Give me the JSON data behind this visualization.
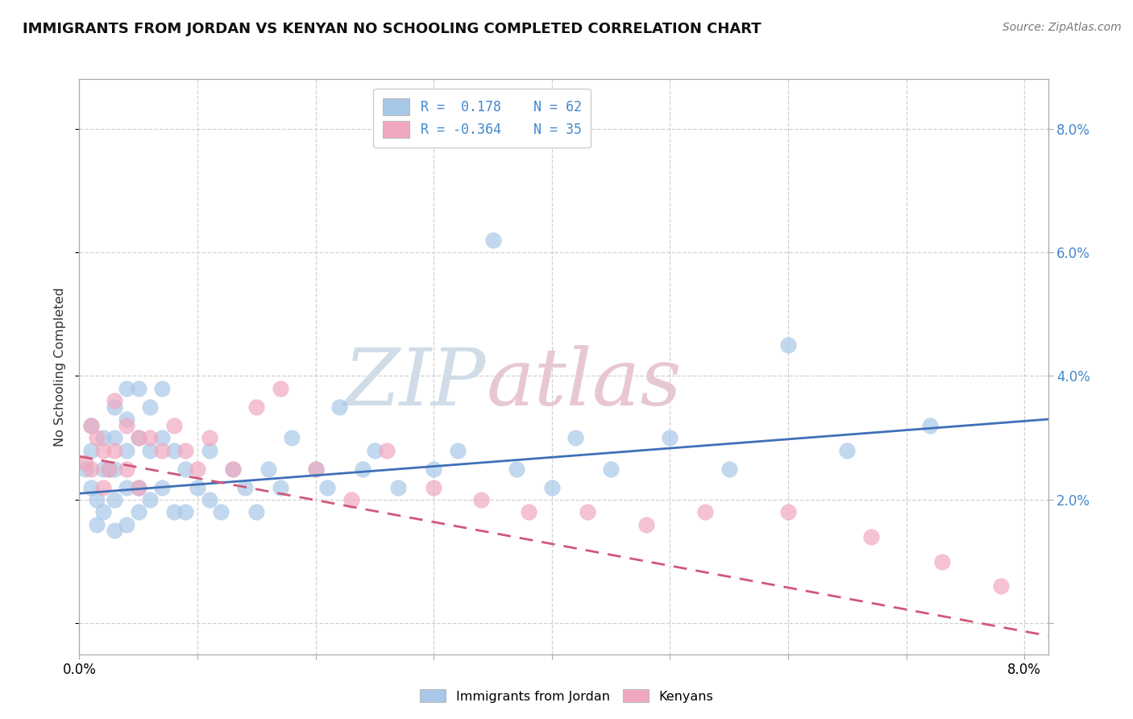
{
  "title": "IMMIGRANTS FROM JORDAN VS KENYAN NO SCHOOLING COMPLETED CORRELATION CHART",
  "source_text": "Source: ZipAtlas.com",
  "ylabel": "No Schooling Completed",
  "xlim": [
    0.0,
    0.082
  ],
  "ylim": [
    -0.005,
    0.088
  ],
  "xticks": [
    0.0,
    0.01,
    0.02,
    0.03,
    0.04,
    0.05,
    0.06,
    0.07,
    0.08
  ],
  "yticks": [
    0.0,
    0.02,
    0.04,
    0.06,
    0.08
  ],
  "legend1_r": " 0.178",
  "legend1_n": "62",
  "legend2_r": "-0.364",
  "legend2_n": "35",
  "blue_color": "#a8c8e8",
  "pink_color": "#f0a8c0",
  "blue_line_color": "#4070b8",
  "pink_line_color": "#d05878",
  "watermark_zip_color": "#d0dce8",
  "watermark_atlas_color": "#e8c8d0",
  "grid_color": "#cccccc",
  "background_color": "#ffffff",
  "jordan_x": [
    0.0005,
    0.001,
    0.001,
    0.001,
    0.0015,
    0.0015,
    0.002,
    0.002,
    0.002,
    0.0025,
    0.003,
    0.003,
    0.003,
    0.003,
    0.003,
    0.004,
    0.004,
    0.004,
    0.004,
    0.004,
    0.005,
    0.005,
    0.005,
    0.005,
    0.006,
    0.006,
    0.006,
    0.007,
    0.007,
    0.007,
    0.008,
    0.008,
    0.009,
    0.009,
    0.01,
    0.011,
    0.011,
    0.012,
    0.013,
    0.014,
    0.015,
    0.016,
    0.017,
    0.018,
    0.02,
    0.021,
    0.022,
    0.024,
    0.025,
    0.027,
    0.03,
    0.032,
    0.035,
    0.037,
    0.04,
    0.042,
    0.045,
    0.05,
    0.055,
    0.06,
    0.065,
    0.072
  ],
  "jordan_y": [
    0.025,
    0.022,
    0.028,
    0.032,
    0.016,
    0.02,
    0.025,
    0.018,
    0.03,
    0.025,
    0.015,
    0.02,
    0.025,
    0.03,
    0.035,
    0.016,
    0.022,
    0.028,
    0.033,
    0.038,
    0.018,
    0.022,
    0.03,
    0.038,
    0.02,
    0.028,
    0.035,
    0.022,
    0.03,
    0.038,
    0.018,
    0.028,
    0.018,
    0.025,
    0.022,
    0.02,
    0.028,
    0.018,
    0.025,
    0.022,
    0.018,
    0.025,
    0.022,
    0.03,
    0.025,
    0.022,
    0.035,
    0.025,
    0.028,
    0.022,
    0.025,
    0.028,
    0.062,
    0.025,
    0.022,
    0.03,
    0.025,
    0.03,
    0.025,
    0.045,
    0.028,
    0.032
  ],
  "kenyan_x": [
    0.0005,
    0.001,
    0.001,
    0.0015,
    0.002,
    0.002,
    0.0025,
    0.003,
    0.003,
    0.004,
    0.004,
    0.005,
    0.005,
    0.006,
    0.007,
    0.008,
    0.009,
    0.01,
    0.011,
    0.013,
    0.015,
    0.017,
    0.02,
    0.023,
    0.026,
    0.03,
    0.034,
    0.038,
    0.043,
    0.048,
    0.053,
    0.06,
    0.067,
    0.073,
    0.078
  ],
  "kenyan_y": [
    0.026,
    0.025,
    0.032,
    0.03,
    0.022,
    0.028,
    0.025,
    0.028,
    0.036,
    0.025,
    0.032,
    0.022,
    0.03,
    0.03,
    0.028,
    0.032,
    0.028,
    0.025,
    0.03,
    0.025,
    0.035,
    0.038,
    0.025,
    0.02,
    0.028,
    0.022,
    0.02,
    0.018,
    0.018,
    0.016,
    0.018,
    0.018,
    0.014,
    0.01,
    0.006
  ],
  "blue_trend_x": [
    0.0,
    0.082
  ],
  "blue_trend_y": [
    0.021,
    0.033
  ],
  "pink_trend_x": [
    0.0,
    0.082
  ],
  "pink_trend_y": [
    0.027,
    -0.002
  ]
}
